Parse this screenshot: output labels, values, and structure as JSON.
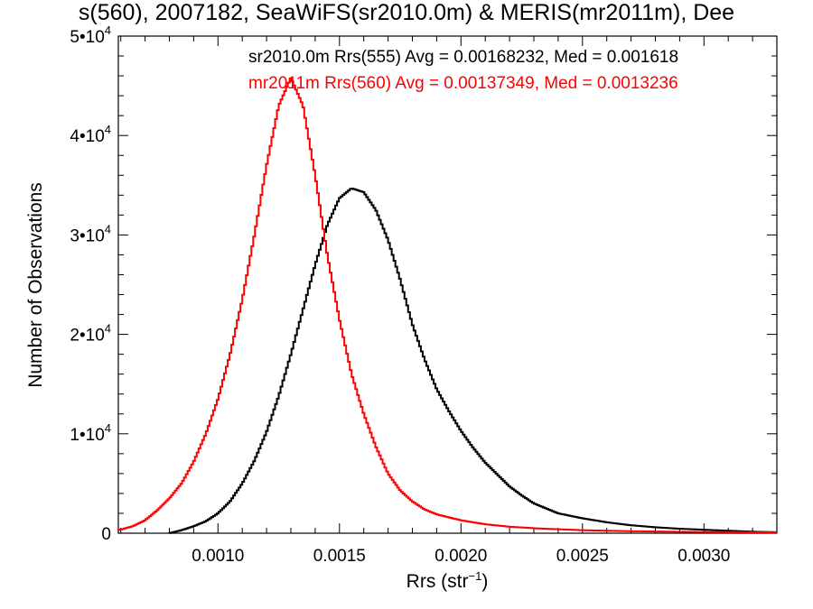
{
  "chart_data": {
    "type": "histogram-step",
    "title": "s(560), 2007182, SeaWiFS(sr2010.0m) & MERIS(mr2011m), Dee",
    "xlabel_base": "Rrs (str",
    "xlabel_sup": "−1",
    "xlabel_end": ")",
    "ylabel": "Number of Observations",
    "xlim": [
      0.00059,
      0.0033
    ],
    "ylim": [
      0,
      50000
    ],
    "x_ticks": [
      {
        "value": 0.001,
        "label": "0.0010"
      },
      {
        "value": 0.0015,
        "label": "0.0015"
      },
      {
        "value": 0.002,
        "label": "0.0020"
      },
      {
        "value": 0.0025,
        "label": "0.0025"
      },
      {
        "value": 0.003,
        "label": "0.0030"
      }
    ],
    "y_ticks": [
      {
        "value": 0,
        "base": "0",
        "exp": ""
      },
      {
        "value": 10000,
        "base": "1•10",
        "exp": "4"
      },
      {
        "value": 20000,
        "base": "2•10",
        "exp": "4"
      },
      {
        "value": 30000,
        "base": "3•10",
        "exp": "4"
      },
      {
        "value": 40000,
        "base": "4•10",
        "exp": "4"
      },
      {
        "value": 50000,
        "base": "5•10",
        "exp": "4"
      }
    ],
    "annotations": [
      {
        "text": "sr2010.0m Rrs(555) Avg = 0.00168232, Med = 0.001618",
        "color": "#000000"
      },
      {
        "text": "mr2011m Rrs(560) Avg = 0.00137349, Med = 0.0013236",
        "color": "#ff0000"
      }
    ],
    "series": [
      {
        "color": "#000000",
        "points": [
          [
            0.0008,
            0
          ],
          [
            0.00085,
            300
          ],
          [
            0.0009,
            700
          ],
          [
            0.00095,
            1200
          ],
          [
            0.001,
            2000
          ],
          [
            0.00105,
            3200
          ],
          [
            0.0011,
            5000
          ],
          [
            0.00115,
            7300
          ],
          [
            0.0012,
            10200
          ],
          [
            0.00125,
            13800
          ],
          [
            0.0013,
            18000
          ],
          [
            0.00135,
            22500
          ],
          [
            0.0014,
            27000
          ],
          [
            0.00145,
            31000
          ],
          [
            0.0015,
            33700
          ],
          [
            0.00155,
            34700
          ],
          [
            0.0016,
            34300
          ],
          [
            0.00165,
            32500
          ],
          [
            0.0017,
            29500
          ],
          [
            0.00175,
            25500
          ],
          [
            0.0018,
            21000
          ],
          [
            0.00185,
            17500
          ],
          [
            0.0019,
            14500
          ],
          [
            0.00195,
            12300
          ],
          [
            0.002,
            10300
          ],
          [
            0.00205,
            8600
          ],
          [
            0.0021,
            7100
          ],
          [
            0.00215,
            5900
          ],
          [
            0.0022,
            4700
          ],
          [
            0.00225,
            3800
          ],
          [
            0.0023,
            3000
          ],
          [
            0.00235,
            2500
          ],
          [
            0.0024,
            2000
          ],
          [
            0.0025,
            1500
          ],
          [
            0.0026,
            1100
          ],
          [
            0.0027,
            800
          ],
          [
            0.0028,
            600
          ],
          [
            0.0029,
            450
          ],
          [
            0.003,
            350
          ],
          [
            0.0031,
            250
          ],
          [
            0.0032,
            150
          ],
          [
            0.0033,
            100
          ]
        ]
      },
      {
        "color": "#ff0000",
        "points": [
          [
            0.00059,
            300
          ],
          [
            0.00065,
            700
          ],
          [
            0.0007,
            1300
          ],
          [
            0.00075,
            2300
          ],
          [
            0.0008,
            3500
          ],
          [
            0.00085,
            5000
          ],
          [
            0.0009,
            7200
          ],
          [
            0.00095,
            10000
          ],
          [
            0.001,
            13500
          ],
          [
            0.00105,
            18000
          ],
          [
            0.0011,
            23500
          ],
          [
            0.00115,
            30000
          ],
          [
            0.0012,
            37000
          ],
          [
            0.00125,
            43000
          ],
          [
            0.0013,
            45800
          ],
          [
            0.00135,
            43000
          ],
          [
            0.0014,
            36000
          ],
          [
            0.00145,
            28000
          ],
          [
            0.0015,
            21500
          ],
          [
            0.00155,
            16000
          ],
          [
            0.0016,
            12000
          ],
          [
            0.00165,
            8700
          ],
          [
            0.0017,
            6000
          ],
          [
            0.00175,
            4300
          ],
          [
            0.0018,
            3200
          ],
          [
            0.00185,
            2400
          ],
          [
            0.0019,
            1900
          ],
          [
            0.002,
            1300
          ],
          [
            0.0021,
            900
          ],
          [
            0.0022,
            650
          ],
          [
            0.0023,
            500
          ],
          [
            0.0025,
            300
          ],
          [
            0.0027,
            200
          ],
          [
            0.003,
            120
          ],
          [
            0.0033,
            80
          ]
        ]
      }
    ]
  }
}
